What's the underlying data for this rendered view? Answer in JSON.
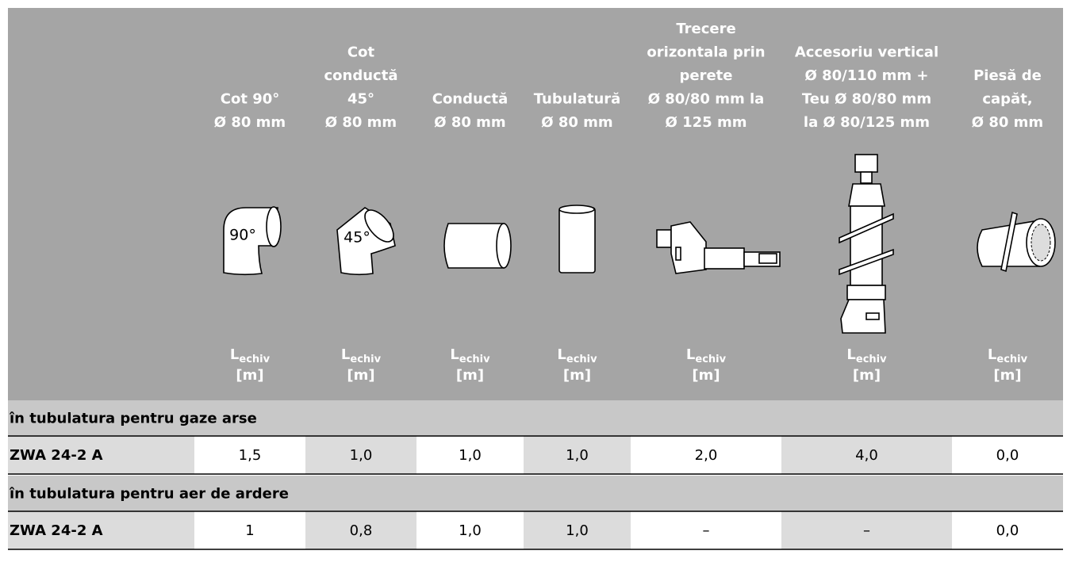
{
  "table": {
    "columns": [
      {
        "lines": [
          "Cot 90°",
          "Ø 80 mm"
        ],
        "icon_label": "90°",
        "symbol": "L",
        "subscript": "echiv",
        "unit": "[m]"
      },
      {
        "lines": [
          "Cot",
          "conductă",
          "45°",
          "Ø 80 mm"
        ],
        "icon_label": "45°",
        "symbol": "L",
        "subscript": "echiv",
        "unit": "[m]"
      },
      {
        "lines": [
          "Conductă",
          "Ø 80 mm"
        ],
        "symbol": "L",
        "subscript": "echiv",
        "unit": "[m]"
      },
      {
        "lines": [
          "Tubulatură",
          "Ø 80 mm"
        ],
        "symbol": "L",
        "subscript": "echiv",
        "unit": "[m]"
      },
      {
        "lines": [
          "Trecere",
          "orizontala prin",
          "perete",
          "Ø 80/80 mm la",
          "Ø  125 mm"
        ],
        "symbol": "L",
        "subscript": "echiv",
        "unit": "[m]"
      },
      {
        "lines": [
          "Accesoriu vertical",
          "Ø 80/110 mm +",
          "Teu Ø  80/80 mm",
          "la Ø  80/125 mm"
        ],
        "symbol": "L",
        "subscript": "echiv",
        "unit": "[m]"
      },
      {
        "lines": [
          "Piesă de",
          "capăt,",
          "Ø 80 mm"
        ],
        "symbol": "L",
        "subscript": "echiv",
        "unit": "[m]"
      }
    ],
    "sections": [
      {
        "title": "în tubulatura pentru gaze arse",
        "row": [
          "ZWA 24-2 A",
          "1,5",
          "1,0",
          "1,0",
          "1,0",
          "2,0",
          "4,0",
          "0,0"
        ]
      },
      {
        "title": "în tubulatura pentru aer de ardere",
        "row": [
          "ZWA 24-2 A",
          "1",
          "0,8",
          "1,0",
          "1,0",
          "–",
          "–",
          "0,0"
        ]
      }
    ]
  }
}
